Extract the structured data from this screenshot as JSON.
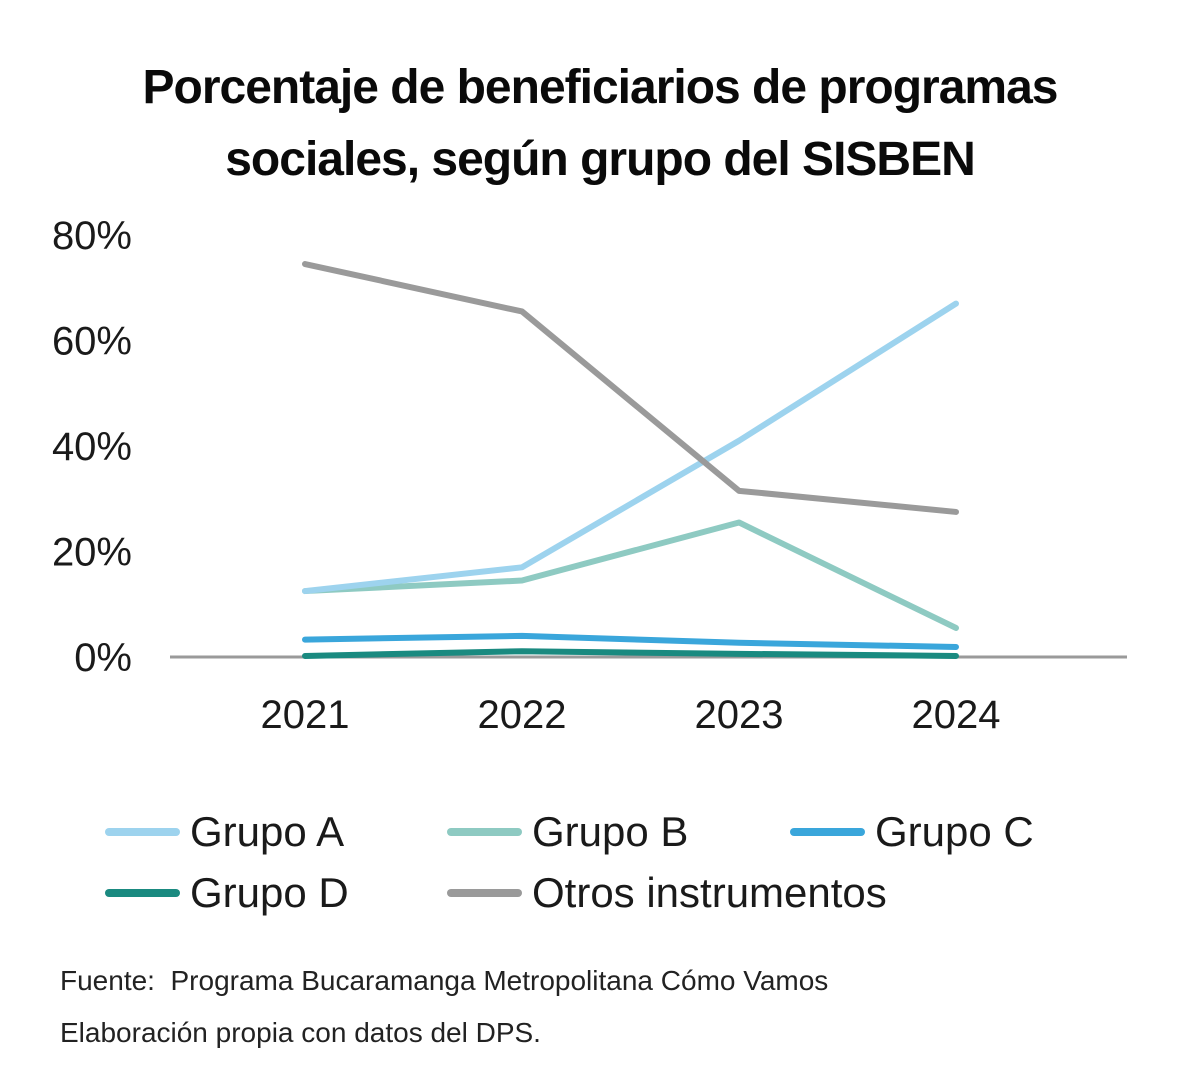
{
  "chart_data": {
    "type": "line",
    "title_lines": [
      "Porcentaje de beneficiarios de programas",
      "sociales, según grupo del SISBEN"
    ],
    "categories": [
      "2021",
      "2022",
      "2023",
      "2024"
    ],
    "ylim": [
      0,
      80
    ],
    "yticks": [
      0,
      20,
      40,
      60,
      80
    ],
    "ytick_labels": [
      "0%",
      "20%",
      "40%",
      "60%",
      "80%"
    ],
    "grid": false,
    "legend_position": "bottom",
    "series": [
      {
        "name": "Grupo A",
        "color": "#9dd3ee",
        "values": [
          12.5,
          17,
          41,
          67
        ]
      },
      {
        "name": "Grupo B",
        "color": "#8ecac2",
        "values": [
          12.5,
          14.5,
          25.5,
          5.5
        ]
      },
      {
        "name": "Grupo C",
        "color": "#3aa6db",
        "values": [
          3.3,
          4,
          2.7,
          1.9
        ]
      },
      {
        "name": "Grupo D",
        "color": "#1a8a80",
        "values": [
          0.2,
          1.1,
          0.6,
          0.2
        ]
      },
      {
        "name": "Otros instrumentos",
        "color": "#9a9a9a",
        "values": [
          74.5,
          65.5,
          31.5,
          27.5
        ]
      }
    ],
    "axis_color": "#9a9a9a"
  },
  "source": {
    "line1": "Fuente:  Programa Bucaramanga Metropolitana Cómo Vamos",
    "line2": "Elaboración propia con datos del DPS."
  }
}
